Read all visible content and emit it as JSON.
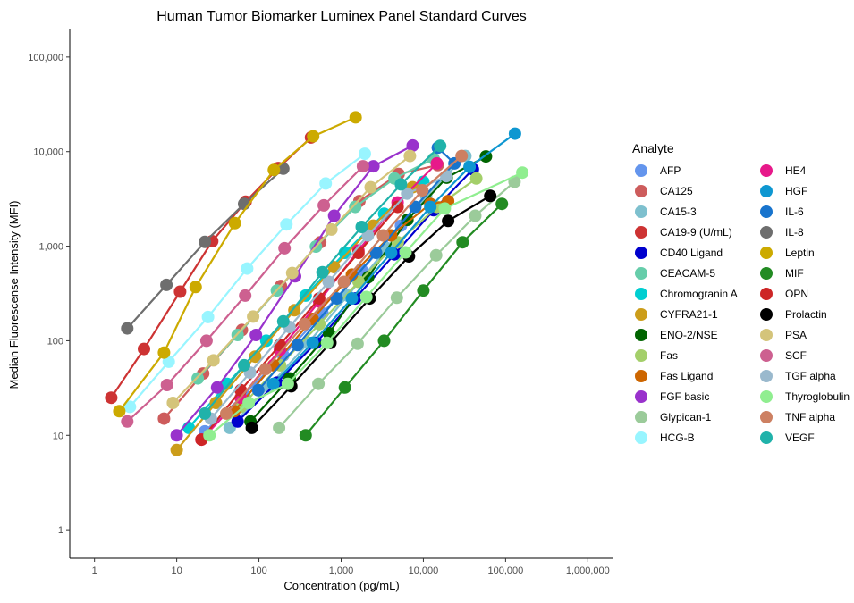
{
  "chart_data": {
    "type": "line",
    "title": "Human Tumor Biomarker Luminex Panel Standard Curves",
    "xlabel": "Concentration (pg/mL)",
    "ylabel": "Median Fluorescense Intensity (MFI)",
    "x_scale": "log10",
    "y_scale": "log10",
    "xlim": [
      0.5,
      2000000
    ],
    "ylim": [
      0.5,
      200000
    ],
    "x_ticks": [
      1,
      10,
      100,
      1000,
      10000,
      100000,
      1000000
    ],
    "x_tick_labels": [
      "1",
      "10",
      "100",
      "1,000",
      "10,000",
      "100,000",
      "1,000,000"
    ],
    "y_ticks": [
      1,
      10,
      100,
      1000,
      10000,
      100000
    ],
    "y_tick_labels": [
      "1",
      "10",
      "100",
      "1,000",
      "10,000",
      "100,000"
    ],
    "grid": false,
    "legend_title": "Analyte",
    "legend_position": "right",
    "series": [
      {
        "name": "AFP",
        "color": "#6495ED",
        "x": [
          22,
          66,
          198,
          593,
          1780,
          5340
        ],
        "y": [
          11,
          27,
          70,
          195,
          560,
          1650
        ]
      },
      {
        "name": "CA125",
        "color": "#CD5C5C",
        "x": [
          7,
          21,
          62,
          185,
          556,
          1667,
          5000,
          15000
        ],
        "y": [
          15,
          45,
          130,
          380,
          1100,
          3000,
          5800,
          7200
        ]
      },
      {
        "name": "CA15-3",
        "color": "#7EC0CE",
        "x": [
          44,
          133,
          400,
          1200,
          3600,
          10800,
          32400
        ],
        "y": [
          12,
          33,
          95,
          300,
          950,
          3400,
          9000
        ]
      },
      {
        "name": "CA19-9 (U/mL)",
        "color": "#CD3333",
        "x": [
          1.6,
          4,
          11,
          27,
          69,
          172,
          430
        ],
        "y": [
          25,
          82,
          330,
          1130,
          2950,
          6700,
          14100
        ]
      },
      {
        "name": "CD40 Ligand",
        "color": "#0000CD",
        "x": [
          55,
          165,
          494,
          1481,
          4444,
          13333,
          40000
        ],
        "y": [
          14,
          36,
          95,
          280,
          820,
          2400,
          6500
        ]
      },
      {
        "name": "CEACAM-5",
        "color": "#66CDAA",
        "x": [
          18,
          55,
          165,
          494,
          1481,
          4444,
          13333
        ],
        "y": [
          40,
          115,
          340,
          990,
          2600,
          5200,
          8400
        ]
      },
      {
        "name": "Chromogranin A",
        "color": "#00CED1",
        "x": [
          14,
          41,
          123,
          370,
          1111,
          3333,
          10000
        ],
        "y": [
          12,
          35,
          100,
          300,
          850,
          2200,
          4800
        ]
      },
      {
        "name": "CYFRA21-1",
        "color": "#CC9D1A",
        "x": [
          10,
          30,
          90,
          270,
          820,
          2460,
          7400
        ],
        "y": [
          7,
          22,
          68,
          210,
          600,
          1650,
          4200
        ]
      },
      {
        "name": "ENO-2/NSE",
        "color": "#006400",
        "x": [
          79,
          237,
          711,
          2133,
          6400,
          19200,
          57600
        ],
        "y": [
          14,
          40,
          120,
          470,
          1900,
          5300,
          8900
        ]
      },
      {
        "name": "Fas",
        "color": "#A4CF6A",
        "x": [
          60,
          181,
          543,
          1629,
          4889,
          14667,
          44000
        ],
        "y": [
          20,
          55,
          150,
          420,
          1100,
          2600,
          5200
        ]
      },
      {
        "name": "Fas Ligand",
        "color": "#CD6600",
        "x": [
          50,
          150,
          450,
          1350,
          4050,
          12150,
          20000
        ],
        "y": [
          18,
          55,
          170,
          500,
          1300,
          2800,
          3000
        ]
      },
      {
        "name": "FGF basic",
        "color": "#9932CC",
        "x": [
          10,
          31,
          92,
          275,
          823,
          2469,
          7407
        ],
        "y": [
          10,
          32,
          115,
          480,
          2100,
          7000,
          11600
        ]
      },
      {
        "name": "Glypican-1",
        "color": "#9BCB9A",
        "x": [
          176,
          529,
          1587,
          4762,
          14286,
          42857,
          128571
        ],
        "y": [
          12,
          35,
          93,
          285,
          800,
          2100,
          4800
        ]
      },
      {
        "name": "HCG-B",
        "color": "#98F5FF",
        "x": [
          2.7,
          8,
          24,
          72,
          216,
          648,
          1944
        ],
        "y": [
          20,
          60,
          178,
          580,
          1700,
          4600,
          9500
        ]
      },
      {
        "name": "HE4",
        "color": "#E7198A",
        "x": [
          20,
          60,
          180,
          540,
          1620,
          4860,
          14580
        ],
        "y": [
          9,
          25,
          80,
          260,
          900,
          2900,
          7500
        ]
      },
      {
        "name": "HGF",
        "color": "#0E97D1",
        "x": [
          150,
          450,
          1350,
          4050,
          12150,
          36450,
          130000
        ],
        "y": [
          35,
          95,
          280,
          850,
          2600,
          6900,
          15500
        ]
      },
      {
        "name": "IL-6",
        "color": "#1874CD",
        "x": [
          98,
          295,
          885,
          2656,
          7968,
          23905,
          15000
        ],
        "y": [
          30,
          90,
          280,
          850,
          2600,
          7500,
          11000
        ]
      },
      {
        "name": "IL-8",
        "color": "#6E6E6E",
        "x": [
          2.5,
          7.5,
          22,
          66,
          198
        ],
        "y": [
          135,
          390,
          1110,
          2800,
          6600
        ]
      },
      {
        "name": "Leptin",
        "color": "#CCAA00",
        "x": [
          2,
          7,
          17,
          51,
          152,
          457,
          1500
        ],
        "y": [
          18,
          75,
          370,
          1750,
          6400,
          14500,
          23000
        ]
      },
      {
        "name": "MIF",
        "color": "#228B22",
        "x": [
          370,
          1110,
          3330,
          10000,
          30000,
          90000
        ],
        "y": [
          10,
          32,
          100,
          340,
          1100,
          2800
        ]
      },
      {
        "name": "OPN",
        "color": "#CD2626",
        "x": [
          20,
          60,
          180,
          540,
          1620,
          4860
        ],
        "y": [
          9,
          30,
          90,
          280,
          850,
          2600
        ]
      },
      {
        "name": "Prolactin",
        "color": "#000000",
        "x": [
          82,
          247,
          741,
          2222,
          6667,
          20000,
          65000
        ],
        "y": [
          12,
          33,
          95,
          280,
          780,
          1850,
          3400
        ]
      },
      {
        "name": "PSA",
        "color": "#D4C47A",
        "x": [
          9,
          28,
          85,
          254,
          762,
          2286,
          6860
        ],
        "y": [
          22,
          62,
          180,
          520,
          1500,
          4200,
          9000
        ]
      },
      {
        "name": "SCF",
        "color": "#CD6090",
        "x": [
          2.5,
          7.6,
          23,
          68,
          205,
          615,
          1844
        ],
        "y": [
          14,
          34,
          100,
          300,
          950,
          2700,
          7000
        ]
      },
      {
        "name": "TGF alpha",
        "color": "#9AB9CD",
        "x": [
          26,
          78,
          235,
          705,
          2115,
          6345,
          19035
        ],
        "y": [
          15,
          46,
          140,
          420,
          1300,
          3600,
          5500
        ]
      },
      {
        "name": "Thyroglobulin",
        "color": "#90EE90",
        "x": [
          25,
          75,
          225,
          675,
          2025,
          6075,
          18225,
          160000
        ],
        "y": [
          10,
          22,
          35,
          95,
          290,
          860,
          2500,
          6000
        ]
      },
      {
        "name": "TNF alpha",
        "color": "#CD8062",
        "x": [
          40,
          120,
          360,
          1080,
          3240,
          9720,
          29160
        ],
        "y": [
          17,
          50,
          150,
          420,
          1300,
          3900,
          9000
        ]
      },
      {
        "name": "VEGF",
        "color": "#20B2AA",
        "x": [
          22,
          66,
          198,
          593,
          1780,
          5340,
          16000
        ],
        "y": [
          17,
          55,
          160,
          530,
          1600,
          4500,
          11500
        ]
      }
    ]
  }
}
